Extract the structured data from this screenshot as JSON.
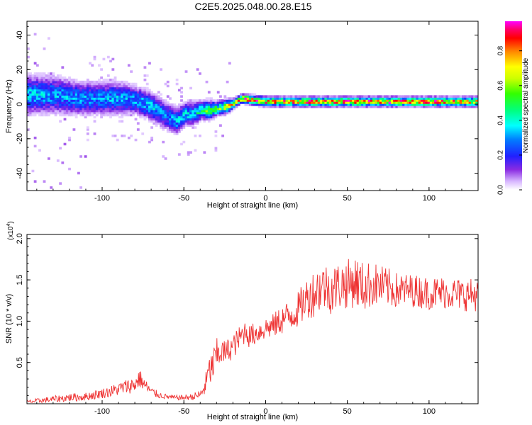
{
  "title": "C2E5.2025.048.00.28.E15",
  "chart_data": [
    {
      "type": "heatmap",
      "xlabel": "Height of straight line (km)",
      "ylabel": "Frequency (Hz)",
      "xlim": [
        -146,
        130
      ],
      "ylim": [
        -50,
        48
      ],
      "x_ticks": [
        -100,
        -50,
        0,
        50,
        100
      ],
      "y_ticks": [
        -40,
        -20,
        0,
        20,
        40
      ],
      "colorbar": {
        "label": "Normalized spectral amplitude",
        "ticks": [
          0.0,
          0.2,
          0.4,
          0.6,
          0.8
        ],
        "tick_labels": [
          "0.0",
          "0.2",
          "0.4",
          "0.6",
          "0.8"
        ],
        "range": [
          0,
          0.97
        ],
        "colors": [
          "#ffffff",
          "#c9a6ff",
          "#6a00ff",
          "#1a1aff",
          "#00ffff",
          "#00ff66",
          "#33ff00",
          "#ffff00",
          "#ff8800",
          "#ff0000",
          "#ff0066",
          "#ff00ff"
        ]
      },
      "ridge": {
        "x": [
          -146,
          -130,
          -115,
          -100,
          -90,
          -80,
          -70,
          -62,
          -55,
          -50,
          -45,
          -40,
          -35,
          -30,
          -25,
          -20,
          -15,
          -10,
          0,
          20,
          40,
          60,
          80,
          100,
          115,
          130
        ],
        "frequency": [
          5,
          5,
          3,
          3,
          3,
          2,
          -2,
          -7,
          -10,
          -6,
          -6,
          -4,
          -4,
          -3,
          -2,
          0,
          3,
          2,
          1,
          1,
          1,
          1,
          1,
          1,
          1,
          1
        ],
        "peak_amplitude": [
          0.4,
          0.35,
          0.35,
          0.35,
          0.35,
          0.35,
          0.4,
          0.3,
          0.35,
          0.4,
          0.4,
          0.5,
          0.6,
          0.6,
          0.7,
          0.8,
          0.85,
          0.9,
          0.9,
          0.9,
          0.95,
          0.95,
          0.95,
          0.95,
          0.9,
          0.85
        ],
        "spread_hz": [
          8,
          8,
          7,
          7,
          7,
          6,
          6,
          6,
          6,
          5,
          5,
          4,
          4,
          3,
          3,
          2,
          2,
          2,
          2,
          2,
          2,
          2,
          2,
          2,
          2,
          2
        ]
      }
    },
    {
      "type": "line",
      "xlabel": "Height of straight line (km)",
      "ylabel": "SNR (10 * v/v)",
      "y_multiplier_label": "(x10",
      "y_multiplier_exponent": "4",
      "y_multiplier_close": ")",
      "xlim": [
        -146,
        130
      ],
      "ylim": [
        0,
        2.05
      ],
      "x_ticks": [
        -100,
        -50,
        0,
        50,
        100
      ],
      "y_ticks": [
        0.5,
        1.0,
        1.5,
        2.0
      ],
      "y_tick_labels": [
        "0.5",
        "1.0",
        "1.5",
        "2.0"
      ],
      "color": "#ee3333",
      "series": [
        {
          "x": [
            -146,
            -140,
            -130,
            -120,
            -110,
            -100,
            -95,
            -90,
            -85,
            -80,
            -77,
            -75,
            -70,
            -65,
            -60,
            -55,
            -50,
            -45,
            -40,
            -37,
            -35,
            -32,
            -30,
            -28,
            -25,
            -20,
            -15,
            -12,
            -10,
            -5,
            0,
            5,
            10,
            15,
            20,
            25,
            30,
            35,
            40,
            45,
            50,
            55,
            60,
            65,
            70,
            75,
            80,
            90,
            100,
            110,
            120,
            125,
            130
          ],
          "y": [
            0.02,
            0.03,
            0.05,
            0.07,
            0.08,
            0.12,
            0.14,
            0.17,
            0.2,
            0.22,
            0.3,
            0.24,
            0.14,
            0.1,
            0.08,
            0.07,
            0.07,
            0.08,
            0.1,
            0.2,
            0.35,
            0.45,
            0.55,
            0.62,
            0.6,
            0.68,
            0.8,
            0.88,
            0.8,
            0.85,
            0.9,
            0.93,
            1.0,
            1.05,
            1.12,
            1.25,
            1.32,
            1.4,
            1.35,
            1.4,
            1.42,
            1.45,
            1.38,
            1.42,
            1.4,
            1.38,
            1.35,
            1.35,
            1.32,
            1.33,
            1.3,
            1.3,
            1.3
          ],
          "noise": [
            0.02,
            0.03,
            0.04,
            0.05,
            0.05,
            0.06,
            0.07,
            0.08,
            0.09,
            0.1,
            0.12,
            0.09,
            0.06,
            0.04,
            0.03,
            0.03,
            0.03,
            0.04,
            0.06,
            0.12,
            0.18,
            0.22,
            0.22,
            0.2,
            0.15,
            0.15,
            0.15,
            0.15,
            0.14,
            0.14,
            0.14,
            0.15,
            0.18,
            0.2,
            0.22,
            0.25,
            0.3,
            0.3,
            0.3,
            0.3,
            0.3,
            0.32,
            0.3,
            0.28,
            0.26,
            0.24,
            0.22,
            0.2,
            0.2,
            0.2,
            0.2,
            0.2,
            0.2
          ]
        }
      ]
    }
  ]
}
